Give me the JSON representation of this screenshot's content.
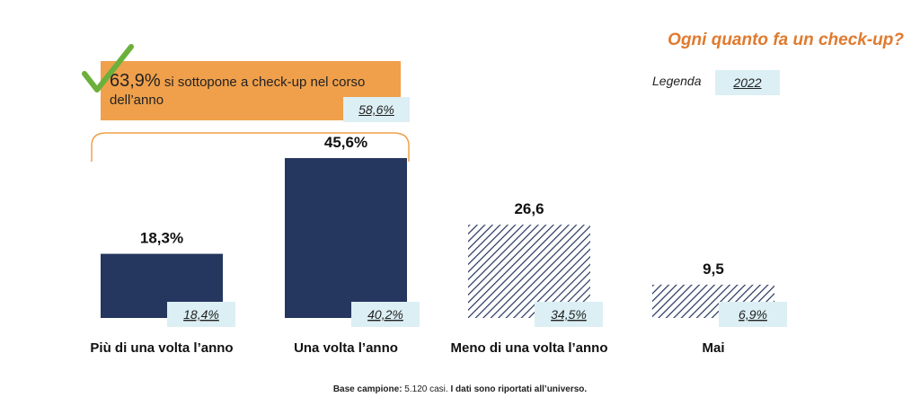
{
  "title": "Ogni quanto fa un check-up?",
  "legend": {
    "label": "Legenda",
    "year": "2022"
  },
  "callout": {
    "value": "63,9%",
    "text": " si sottopone a check-up nel corso dell’anno",
    "previous": "58,6%",
    "accent_color": "#F0A04B"
  },
  "footer": {
    "label": "Base campione:",
    "value": " 5.120 casi.",
    "note": " I dati sono riportati all’universo."
  },
  "colors": {
    "bar_fill": "#25365F",
    "prev_box": "#DCEFF4",
    "title": "#E07A2E",
    "check": "#6BB03A"
  },
  "chart_data": {
    "type": "bar",
    "categories": [
      "Più di una volta l’anno",
      "Una volta l’anno",
      "Meno di una volta l’anno",
      "Mai"
    ],
    "values": [
      18.3,
      45.6,
      26.6,
      9.5
    ],
    "value_labels": [
      "18,3%",
      "45,6%",
      "26,6",
      "9,5"
    ],
    "previous_labels": [
      "18,4%",
      "40,2%",
      "34,5%",
      "6,9%"
    ],
    "previous_values": [
      18.4,
      40.2,
      34.5,
      6.9
    ],
    "fill_style": [
      "solid",
      "solid",
      "hatched",
      "hatched"
    ],
    "ylim": [
      0,
      50
    ]
  }
}
